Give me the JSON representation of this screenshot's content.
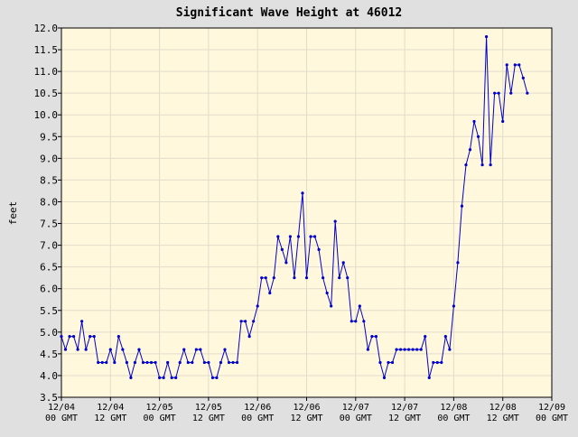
{
  "colors": {
    "page_background": "#e0e0e0",
    "plot_background": "#fff8dc",
    "grid": "#e2dccb",
    "series_line": "#0000cc"
  },
  "chart_data": {
    "type": "line",
    "title": "Significant Wave Height at 46012",
    "xlabel": "",
    "ylabel": "feet",
    "ylim": [
      3.5,
      12.0
    ],
    "y_ticks": [
      3.5,
      4.0,
      4.5,
      5.0,
      5.5,
      6.0,
      6.5,
      7.0,
      7.5,
      8.0,
      8.5,
      9.0,
      9.5,
      10.0,
      10.5,
      11.0,
      11.5,
      12.0
    ],
    "y_tick_labels": [
      "3.5",
      "4.0",
      "4.5",
      "5.0",
      "5.5",
      "6.0",
      "6.5",
      "7.0",
      "7.5",
      "8.0",
      "8.5",
      "9.0",
      "9.5",
      "10.0",
      "10.5",
      "11.0",
      "11.5",
      "12.0"
    ],
    "x_axis_unit": "hours after 12/04 00 GMT",
    "xlim": [
      0,
      120
    ],
    "x_ticks": [
      0,
      12,
      24,
      36,
      48,
      60,
      72,
      84,
      96,
      108,
      120
    ],
    "x_tick_labels": [
      [
        "12/04",
        "00 GMT"
      ],
      [
        "12/04",
        "12 GMT"
      ],
      [
        "12/05",
        "00 GMT"
      ],
      [
        "12/05",
        "12 GMT"
      ],
      [
        "12/06",
        "00 GMT"
      ],
      [
        "12/06",
        "12 GMT"
      ],
      [
        "12/07",
        "00 GMT"
      ],
      [
        "12/07",
        "12 GMT"
      ],
      [
        "12/08",
        "00 GMT"
      ],
      [
        "12/08",
        "12 GMT"
      ],
      [
        "12/09",
        "00 GMT"
      ]
    ],
    "grid": true,
    "legend": "none",
    "series": [
      {
        "x": [
          0,
          1,
          2,
          3,
          4,
          5,
          6,
          7,
          8,
          9,
          10,
          11,
          12,
          13,
          14,
          15,
          16,
          17,
          18,
          19,
          20,
          21,
          22,
          23,
          24,
          25,
          26,
          27,
          28,
          29,
          30,
          31,
          32,
          33,
          34,
          35,
          36,
          37,
          38,
          39,
          40,
          41,
          42,
          43,
          44,
          45,
          46,
          47,
          48,
          49,
          50,
          51,
          52,
          53,
          54,
          55,
          56,
          57,
          58,
          59,
          60,
          61,
          62,
          63,
          64,
          65,
          66,
          67,
          68,
          69,
          70,
          71,
          72,
          73,
          74,
          75,
          76,
          77,
          78,
          79,
          80,
          81,
          82,
          83,
          84,
          85,
          86,
          87,
          88,
          89,
          90,
          91,
          92,
          93,
          94,
          95,
          96,
          97,
          98,
          99,
          100,
          101,
          102,
          103,
          104,
          105,
          106,
          107,
          108,
          109,
          110,
          111,
          112,
          113,
          114
        ],
        "y": [
          4.9,
          4.6,
          4.9,
          4.9,
          4.6,
          5.25,
          4.6,
          4.9,
          4.9,
          4.3,
          4.3,
          4.3,
          4.6,
          4.3,
          4.9,
          4.6,
          4.3,
          3.95,
          4.3,
          4.6,
          4.3,
          4.3,
          4.3,
          4.3,
          3.95,
          3.95,
          4.3,
          3.95,
          3.95,
          4.3,
          4.6,
          4.3,
          4.3,
          4.6,
          4.6,
          4.3,
          4.3,
          3.95,
          3.95,
          4.3,
          4.6,
          4.3,
          4.3,
          4.3,
          5.25,
          5.25,
          4.9,
          5.25,
          5.6,
          6.25,
          6.25,
          5.9,
          6.25,
          7.2,
          6.9,
          6.6,
          7.2,
          6.25,
          7.2,
          8.2,
          6.25,
          7.2,
          7.2,
          6.9,
          6.25,
          5.9,
          5.6,
          7.55,
          6.25,
          6.6,
          6.25,
          5.25,
          5.25,
          5.6,
          5.25,
          4.6,
          4.9,
          4.9,
          4.3,
          3.95,
          4.3,
          4.3,
          4.6,
          4.6,
          4.6,
          4.6,
          4.6,
          4.6,
          4.6,
          4.9,
          3.95,
          4.3,
          4.3,
          4.3,
          4.9,
          4.6,
          5.6,
          6.6,
          7.9,
          8.85,
          9.2,
          9.85,
          9.5,
          8.85,
          11.8,
          8.85,
          10.5,
          10.5,
          9.85,
          11.15,
          10.5,
          11.15,
          11.15,
          10.85,
          10.5
        ]
      }
    ]
  }
}
